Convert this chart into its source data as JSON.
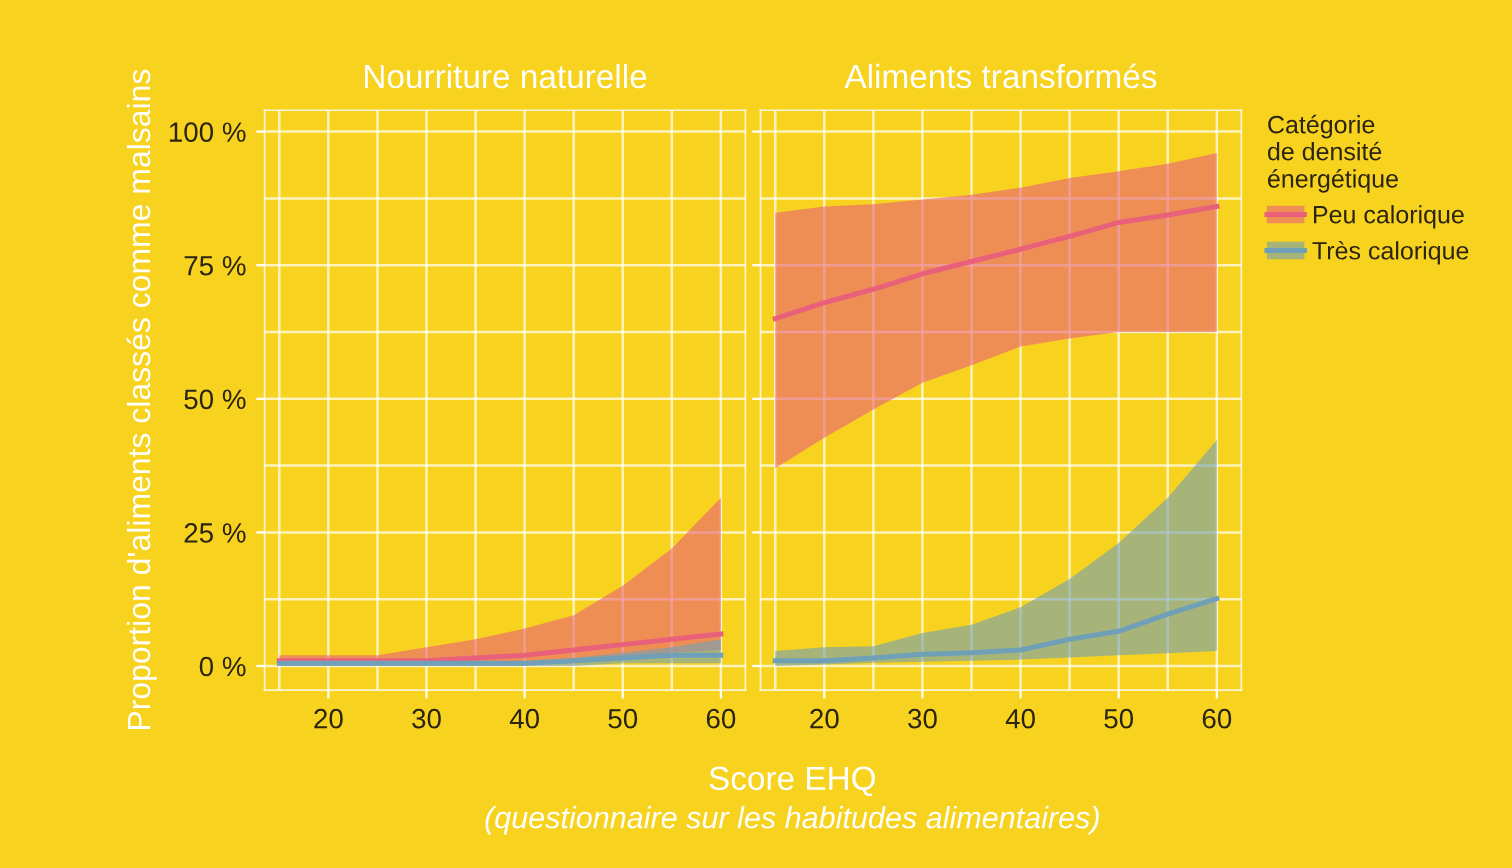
{
  "chart_data": [
    {
      "type": "line",
      "title": "Nourriture naturelle",
      "ylabel": "Proportion d'aliments classés comme malsains",
      "xlabel": "Score EHQ",
      "annotations": [
        "(questionnaire sur les habitudes alimentaires)"
      ],
      "legend_title": "Catégorie\nde densité\nénergétique",
      "x": [
        15,
        20,
        25,
        30,
        35,
        40,
        45,
        50,
        55,
        60
      ],
      "series": [
        {
          "name": "Peu calorique",
          "color": "#e8607a",
          "values": [
            1,
            1,
            1,
            1,
            1.5,
            2,
            3,
            4,
            5,
            6
          ],
          "lower": [
            0.5,
            0.5,
            0.5,
            0.5,
            0.5,
            0.5,
            1,
            1.5,
            2.5,
            3
          ],
          "upper": [
            2,
            2,
            2,
            3.5,
            5,
            7,
            9.5,
            15,
            22,
            31.5
          ]
        },
        {
          "name": "Très calorique",
          "color": "#6fa0b8",
          "values": [
            0.5,
            0.5,
            0.5,
            0.5,
            0.5,
            0.5,
            1,
            1.5,
            2,
            2
          ],
          "lower": [
            0,
            0,
            0,
            0,
            0,
            0,
            0,
            0.5,
            0.5,
            0.5
          ],
          "upper": [
            0.5,
            0.5,
            0.5,
            0.5,
            0.5,
            0.5,
            1.5,
            2.5,
            3.5,
            5
          ]
        }
      ],
      "xlim": [
        13.5,
        62.5
      ],
      "ylim": [
        -4.5,
        104
      ],
      "xticks": [
        20,
        30,
        40,
        50,
        60
      ],
      "yticks": [
        {
          "value": 0,
          "label": "0 %"
        },
        {
          "value": 25,
          "label": "25 %"
        },
        {
          "value": 50,
          "label": "50 %"
        },
        {
          "value": 75,
          "label": "75 %"
        },
        {
          "value": 100,
          "label": "100 %"
        }
      ],
      "grid": true,
      "legend": "right",
      "marker": "none",
      "line_style": "solid"
    },
    {
      "type": "line",
      "title": "Aliments transformés",
      "x": [
        15,
        20,
        25,
        30,
        35,
        40,
        45,
        50,
        55,
        60
      ],
      "series": [
        {
          "color": "#e8607a",
          "values": [
            65,
            68,
            70.5,
            73.4,
            75.7,
            78,
            80.4,
            83,
            84.4,
            86
          ],
          "lower": [
            37,
            42.7,
            48,
            53,
            56.3,
            59.8,
            61.3,
            62.5,
            62.5,
            62.5
          ],
          "upper": [
            84.8,
            86,
            86.4,
            87.3,
            88.2,
            89.5,
            91.3,
            92.6,
            94,
            96
          ]
        },
        {
          "color": "#6fa0b8",
          "values": [
            1,
            1,
            1.5,
            2.2,
            2.5,
            3,
            5,
            6.5,
            9.7,
            12.6
          ],
          "lower": [
            0,
            0.3,
            0.6,
            0.8,
            1,
            1.2,
            1.6,
            2,
            2.4,
            2.8
          ],
          "upper": [
            2.8,
            3.5,
            3.7,
            6.2,
            7.7,
            11,
            16.3,
            23,
            31.5,
            42.3
          ]
        }
      ],
      "xlim": [
        13.5,
        62.5
      ],
      "ylim": [
        -4.5,
        104
      ],
      "xticks": [
        20,
        30,
        40,
        50,
        60
      ],
      "yticks": [
        0,
        25,
        50,
        75,
        100
      ],
      "tick_labels": "x",
      "grid": true,
      "marker": "none",
      "line_style": "solid"
    }
  ]
}
